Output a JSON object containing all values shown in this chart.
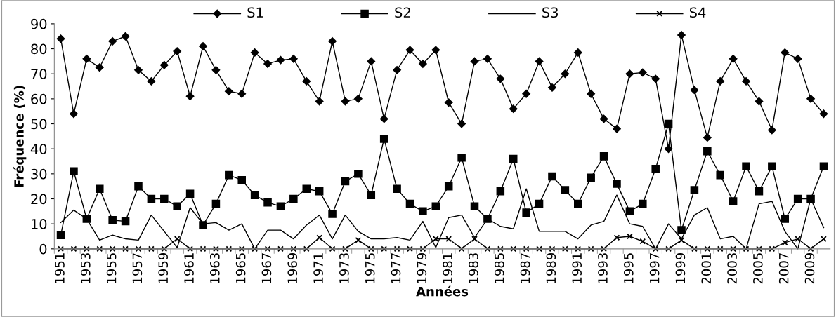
{
  "chart_data": {
    "type": "line",
    "xlabel": "Années",
    "ylabel": "Fréquence (%)",
    "categories": [
      "1951",
      null,
      "1953",
      null,
      "1955",
      null,
      "1957",
      null,
      "1959",
      null,
      "1961",
      null,
      "1963",
      null,
      "1965",
      null,
      "1967",
      null,
      "1969",
      null,
      "1971",
      null,
      "1973",
      null,
      "1975",
      null,
      "1977",
      null,
      "1979",
      null,
      "1981",
      null,
      "1983",
      null,
      "1985",
      null,
      "1987",
      null,
      "1989",
      null,
      "1991",
      null,
      "1993",
      null,
      "1995",
      null,
      "1997",
      null,
      "1999",
      null,
      "2001",
      null,
      "2003",
      null,
      "2005",
      null,
      "2007",
      null,
      "2009",
      null
    ],
    "series": [
      {
        "name": "S1",
        "color": "#000000",
        "marker": "diamond",
        "values": [
          84,
          54,
          76,
          72.5,
          83,
          85,
          71.5,
          67,
          73.5,
          79,
          61,
          81,
          71.5,
          63,
          62,
          78.5,
          74,
          75.5,
          76,
          67,
          59,
          83,
          59,
          60,
          75,
          52,
          71.5,
          79.5,
          74,
          79.5,
          58.5,
          50,
          75,
          76,
          68,
          56,
          62,
          75,
          64.5,
          70,
          78.5,
          62,
          52,
          48,
          70,
          70.5,
          68,
          40,
          85.5,
          63.5,
          44.5,
          67,
          76,
          67,
          59,
          47.5,
          78.5,
          76,
          60,
          54
        ]
      },
      {
        "name": "S2",
        "color": "#000000",
        "marker": "square",
        "values": [
          5.5,
          31,
          12,
          24,
          11.5,
          11,
          25,
          20,
          20,
          17,
          22,
          9.5,
          18,
          29.5,
          27.5,
          21.5,
          18.5,
          17,
          20,
          24,
          23,
          14,
          27,
          30,
          21.5,
          44,
          24,
          18,
          15,
          17,
          25,
          36.5,
          17,
          12,
          23,
          36,
          14.5,
          18,
          29,
          23.5,
          18,
          28.5,
          37,
          26,
          15,
          18,
          32,
          50,
          7.5,
          23.5,
          39,
          29.5,
          19,
          33,
          23,
          33,
          12,
          20,
          20,
          33
        ]
      },
      {
        "name": "S3",
        "color": "#000000",
        "marker": "none",
        "values": [
          10.5,
          15.5,
          12,
          3.5,
          5.5,
          4,
          3.5,
          13.5,
          7,
          0.5,
          16.5,
          10,
          10.5,
          7.5,
          10,
          0,
          7.5,
          7.5,
          4,
          9.5,
          13.5,
          4,
          13.5,
          7,
          4,
          4,
          4.5,
          3.5,
          11,
          0.5,
          12.5,
          13.5,
          4.5,
          12,
          9,
          8,
          24,
          7,
          7,
          7,
          4,
          9.5,
          11,
          21.5,
          10,
          9,
          0,
          10,
          4,
          13.5,
          16.5,
          4,
          5,
          0,
          18,
          19,
          7,
          0,
          20,
          8.5
        ]
      },
      {
        "name": "S4",
        "color": "#000000",
        "marker": "cross",
        "values": [
          0,
          0,
          0,
          0,
          0,
          0,
          0,
          0,
          0,
          4,
          0,
          0,
          0,
          0,
          0,
          0,
          0,
          0,
          0,
          0,
          4.5,
          0,
          0,
          3.5,
          0,
          0,
          0,
          0,
          0,
          4,
          4,
          0,
          4,
          0,
          0,
          0,
          0,
          0,
          0,
          0,
          0,
          0,
          0,
          4.5,
          5,
          3,
          0,
          0,
          3.5,
          0,
          0,
          0,
          0,
          0,
          0,
          0,
          2.5,
          4,
          0,
          4
        ]
      }
    ],
    "ylim": [
      0,
      90
    ],
    "yticks": [
      0,
      10,
      20,
      30,
      40,
      50,
      60,
      70,
      80,
      90
    ],
    "grid": false,
    "legend": "top"
  }
}
